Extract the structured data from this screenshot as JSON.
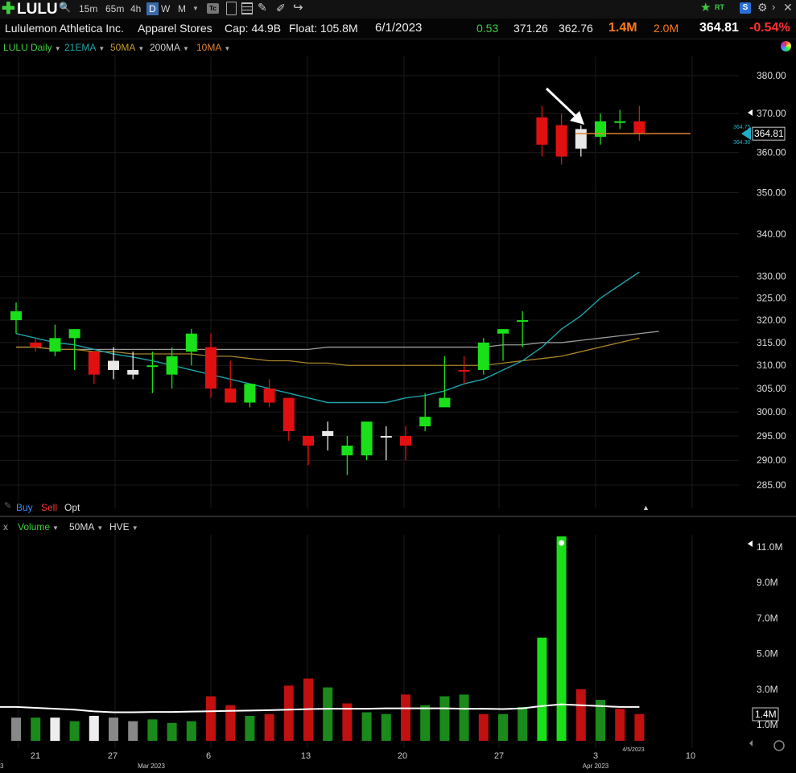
{
  "toolbar": {
    "symbol": "LULU",
    "timeframes": [
      "15m",
      "65m",
      "4h",
      "D",
      "W",
      "M"
    ],
    "selected_timeframe": "D",
    "rt_label": "RT",
    "s_label": "S"
  },
  "info": {
    "company": "Lululemon Athletica Inc.",
    "industry": "Apparel Stores",
    "cap": "Cap: 44.9B",
    "float": "Float: 105.8M",
    "date": "6/1/2023",
    "stat1": "0.53",
    "high": "371.26",
    "low": "362.76",
    "volume": "1.4M",
    "avg_volume": "2.0M",
    "price": "364.81",
    "change_pct": "-0.54%"
  },
  "indicators": {
    "daily": "LULU Daily",
    "ema21": "21EMA",
    "ma50": "50MA",
    "ma200": "200MA",
    "ma10": "10MA"
  },
  "orders": {
    "buy": "Buy",
    "sell": "Sell",
    "opt": "Opt"
  },
  "volume_panel": {
    "x_label": "x",
    "volume": "Volume",
    "ma50": "50MA",
    "hve": "HVE"
  },
  "colors": {
    "up": "#19e019",
    "down": "#e01010",
    "neutral": "#e8e8e8",
    "ema21": "#1fa3a8",
    "ma50": "#a88428",
    "ma200": "#9a9a9a",
    "ma10": "#e08030",
    "accent_volume": "#ff7a1a",
    "change_neg": "#ff3030"
  },
  "chart_data": [
    {
      "type": "candlestick",
      "title": "LULU Daily",
      "x_tick_labels": [
        "21",
        "27",
        "Mar 2023",
        "6",
        "13",
        "20",
        "27",
        "3",
        "4/5/2023",
        "10",
        "Apr 2023"
      ],
      "y_tick_labels": [
        "380.00",
        "370.00",
        "360.00",
        "350.00",
        "340.00",
        "330.00",
        "325.00",
        "320.00",
        "315.00",
        "310.00",
        "305.00",
        "300.00",
        "295.00",
        "290.00",
        "285.00"
      ],
      "ylim": [
        285,
        380
      ],
      "y_scale": "log",
      "price_marker": "364.81",
      "marker_high": "364.75",
      "marker_low": "364.30",
      "bars": [
        {
          "d": "2/16",
          "o": 322,
          "h": 324,
          "l": 317,
          "c": 320,
          "dir": "up"
        },
        {
          "d": "2/17",
          "o": 315,
          "h": 316,
          "l": 313,
          "c": 314,
          "dir": "down"
        },
        {
          "d": "2/21",
          "o": 313,
          "h": 319,
          "l": 312,
          "c": 316,
          "dir": "up"
        },
        {
          "d": "2/22",
          "o": 318,
          "h": 318,
          "l": 309,
          "c": 316,
          "dir": "up"
        },
        {
          "d": "2/23",
          "o": 313,
          "h": 313,
          "l": 306,
          "c": 308,
          "dir": "down"
        },
        {
          "d": "2/24",
          "o": 311,
          "h": 314,
          "l": 307,
          "c": 309,
          "dir": "neutral"
        },
        {
          "d": "2/27",
          "o": 309,
          "h": 313,
          "l": 307,
          "c": 308,
          "dir": "neutral"
        },
        {
          "d": "2/28",
          "o": 310,
          "h": 313,
          "l": 304,
          "c": 310,
          "dir": "up"
        },
        {
          "d": "3/1",
          "o": 308,
          "h": 314,
          "l": 305,
          "c": 312,
          "dir": "up"
        },
        {
          "d": "3/2",
          "o": 313,
          "h": 318,
          "l": 310,
          "c": 317,
          "dir": "up"
        },
        {
          "d": "3/3",
          "o": 314,
          "h": 317,
          "l": 303,
          "c": 305,
          "dir": "down"
        },
        {
          "d": "3/6",
          "o": 305,
          "h": 311,
          "l": 303,
          "c": 302,
          "dir": "down"
        },
        {
          "d": "3/7",
          "o": 302,
          "h": 306,
          "l": 301,
          "c": 306,
          "dir": "up"
        },
        {
          "d": "3/8",
          "o": 305,
          "h": 307,
          "l": 301,
          "c": 302,
          "dir": "down"
        },
        {
          "d": "3/9",
          "o": 303,
          "h": 303,
          "l": 294,
          "c": 296,
          "dir": "down"
        },
        {
          "d": "3/10",
          "o": 295,
          "h": 295,
          "l": 289,
          "c": 293,
          "dir": "down"
        },
        {
          "d": "3/13",
          "o": 295,
          "h": 298,
          "l": 292,
          "c": 296,
          "dir": "neutral"
        },
        {
          "d": "3/14",
          "o": 291,
          "h": 295,
          "l": 287,
          "c": 293,
          "dir": "up"
        },
        {
          "d": "3/15",
          "o": 291,
          "h": 298,
          "l": 290,
          "c": 298,
          "dir": "up"
        },
        {
          "d": "3/16",
          "o": 295,
          "h": 297,
          "l": 290,
          "c": 295,
          "dir": "neutral"
        },
        {
          "d": "3/17",
          "o": 295,
          "h": 297,
          "l": 290,
          "c": 293,
          "dir": "down"
        },
        {
          "d": "3/20",
          "o": 297,
          "h": 304,
          "l": 296,
          "c": 299,
          "dir": "up"
        },
        {
          "d": "3/21",
          "o": 301,
          "h": 312,
          "l": 301,
          "c": 303,
          "dir": "up"
        },
        {
          "d": "3/22",
          "o": 309,
          "h": 312,
          "l": 306,
          "c": 309,
          "dir": "down"
        },
        {
          "d": "3/23",
          "o": 309,
          "h": 316,
          "l": 308,
          "c": 315,
          "dir": "up"
        },
        {
          "d": "3/24",
          "o": 317,
          "h": 318,
          "l": 311,
          "c": 318,
          "dir": "up"
        },
        {
          "d": "3/27",
          "o": 320,
          "h": 322,
          "l": 314,
          "c": 320,
          "dir": "up"
        },
        {
          "d": "3/28",
          "o": 369,
          "h": 372,
          "l": 359,
          "c": 362,
          "dir": "down"
        },
        {
          "d": "3/29",
          "o": 367,
          "h": 370,
          "l": 357,
          "c": 359,
          "dir": "down"
        },
        {
          "d": "3/30",
          "o": 361,
          "h": 367,
          "l": 359,
          "c": 366,
          "dir": "neutral"
        },
        {
          "d": "3/31",
          "o": 364,
          "h": 370,
          "l": 362,
          "c": 368,
          "dir": "up"
        },
        {
          "d": "4/3",
          "o": 368,
          "h": 371,
          "l": 366,
          "c": 368,
          "dir": "up"
        },
        {
          "d": "4/4",
          "o": 368,
          "h": 372,
          "l": 363,
          "c": 365,
          "dir": "down"
        }
      ],
      "ema21": [
        317,
        316,
        315,
        314.5,
        313.5,
        312.5,
        311.8,
        311,
        310,
        309,
        308,
        307,
        306,
        305,
        304,
        303,
        302,
        302,
        302,
        302,
        303,
        303.5,
        304.5,
        306,
        307,
        309,
        311,
        314,
        318,
        321,
        325,
        328,
        331
      ],
      "ma50": [
        314,
        314,
        313.5,
        313.5,
        313,
        313,
        312.5,
        312.5,
        312.5,
        312.5,
        312,
        312,
        311.5,
        311,
        311,
        310.5,
        310.5,
        310,
        310,
        310,
        310,
        310,
        310,
        310,
        310,
        310.5,
        311,
        311.5,
        312,
        313,
        314,
        315,
        316
      ],
      "ma200": [
        314,
        313.5,
        313.5,
        313.5,
        313.5,
        313.5,
        313.5,
        313.5,
        313.5,
        313.5,
        313.5,
        313.5,
        313.5,
        313.5,
        313.5,
        314,
        314,
        314,
        314,
        314,
        314,
        314,
        314,
        314,
        314.5,
        314.5,
        315,
        315,
        315.5,
        316,
        316.5,
        317,
        317.5
      ]
    },
    {
      "type": "bar",
      "title": "Volume",
      "y_tick_labels": [
        "11.0M",
        "9.0M",
        "7.0M",
        "5.0M",
        "3.0M",
        "1.0M"
      ],
      "ylim": [
        0,
        12
      ],
      "unit": "M",
      "current_label": "1.4M",
      "values": [
        1.4,
        1.4,
        1.4,
        1.2,
        1.5,
        1.4,
        1.2,
        1.3,
        1.1,
        1.2,
        2.6,
        2.1,
        1.5,
        1.6,
        3.2,
        3.6,
        3.1,
        2.2,
        1.7,
        1.6,
        2.7,
        2.1,
        2.6,
        2.7,
        1.6,
        1.6,
        2.0,
        5.9,
        11.6,
        3.0,
        2.4,
        1.9,
        1.6
      ],
      "colors_dir": [
        "neutral",
        "up",
        "neutral",
        "up",
        "neutral",
        "neutral",
        "neutral",
        "up",
        "up",
        "up",
        "down",
        "down",
        "up",
        "down",
        "down",
        "down",
        "up",
        "down",
        "up",
        "up",
        "down",
        "up",
        "up",
        "up",
        "down",
        "up",
        "up",
        "up",
        "up",
        "down",
        "up",
        "down",
        "down"
      ],
      "ma50_values": [
        2.0,
        1.95,
        1.9,
        1.85,
        1.75,
        1.7,
        1.7,
        1.72,
        1.72,
        1.74,
        1.76,
        1.78,
        1.8,
        1.82,
        1.85,
        1.88,
        1.9,
        1.9,
        1.9,
        1.92,
        1.92,
        1.92,
        1.92,
        1.9,
        1.9,
        1.88,
        1.92,
        2.05,
        2.15,
        2.1,
        2.05,
        2.0,
        2.0
      ]
    }
  ]
}
